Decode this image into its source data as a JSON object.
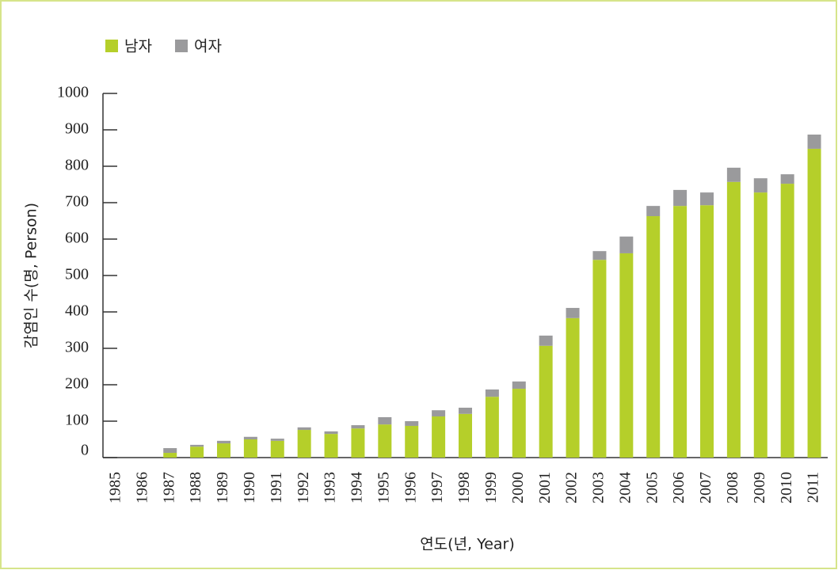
{
  "chart_data": {
    "type": "bar",
    "stacked": true,
    "xlabel": "연도(년, Year)",
    "ylabel": "감염인 수(명, Person)",
    "categories": [
      "1985",
      "1986",
      "1987",
      "1988",
      "1989",
      "1990",
      "1991",
      "1992",
      "1993",
      "1994",
      "1995",
      "1996",
      "1997",
      "1998",
      "1999",
      "2000",
      "2001",
      "2002",
      "2003",
      "2004",
      "2005",
      "2006",
      "2007",
      "2008",
      "2009",
      "2010",
      "2011"
    ],
    "series": [
      {
        "name": "남자",
        "color": "#b5cf2a",
        "values": [
          0,
          0,
          13,
          30,
          39,
          50,
          46,
          76,
          65,
          80,
          91,
          87,
          113,
          120,
          167,
          189,
          307,
          383,
          543,
          561,
          663,
          691,
          693,
          757,
          728,
          752,
          848
        ]
      },
      {
        "name": "여자",
        "color": "#9a9a9c",
        "values": [
          0,
          0,
          13,
          5,
          7,
          7,
          6,
          7,
          7,
          9,
          20,
          13,
          17,
          17,
          20,
          20,
          28,
          28,
          24,
          46,
          28,
          44,
          35,
          39,
          39,
          26,
          39
        ]
      }
    ],
    "ylim": [
      0,
      1000
    ],
    "yticks": [
      0,
      100,
      200,
      300,
      400,
      500,
      600,
      700,
      800,
      900,
      1000
    ],
    "legend": "top-left"
  }
}
